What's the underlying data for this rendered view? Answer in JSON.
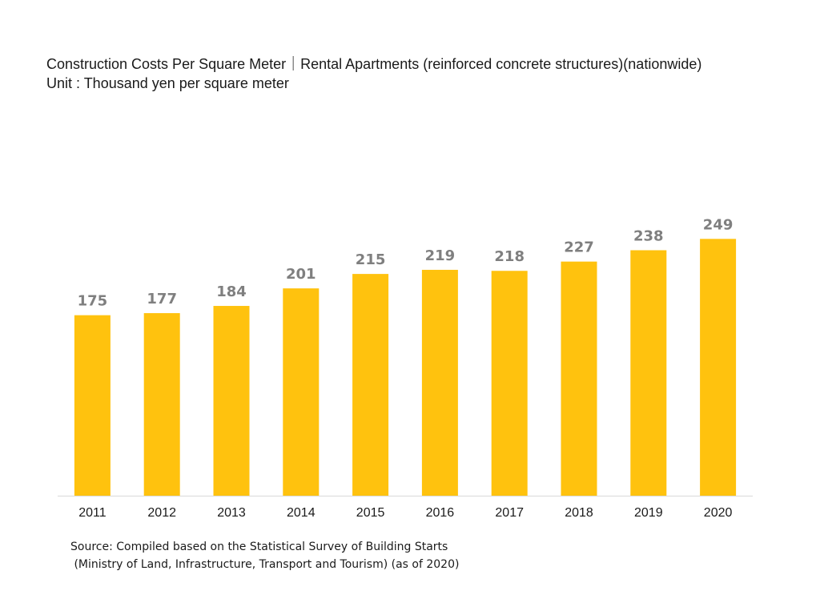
{
  "header": {
    "title": "Construction Costs Per Square Meter｜Rental Apartments (reinforced concrete structures)(nationwide)",
    "unit": "Unit : Thousand yen per square meter"
  },
  "source": {
    "line1": "Source: Compiled based on the Statistical Survey of Building Starts",
    "line2": " (Ministry of Land, Infrastructure, Transport and Tourism) (as of 2020)"
  },
  "chart_data": {
    "type": "bar",
    "title": "Construction Costs Per Square Meter｜Rental Apartments (reinforced concrete structures)(nationwide)",
    "subtitle": "Unit : Thousand yen per square meter",
    "xlabel": "",
    "ylabel": "",
    "categories": [
      "2011",
      "2012",
      "2013",
      "2014",
      "2015",
      "2016",
      "2017",
      "2018",
      "2019",
      "2020"
    ],
    "values": [
      175,
      177,
      184,
      201,
      215,
      219,
      218,
      227,
      238,
      249
    ],
    "ylim": [
      0,
      330
    ],
    "grid": false,
    "legend": "none",
    "colors": {
      "bar": "#FFC20E",
      "value_label": "#7f7f7f",
      "tick_label": "#1a1a1a",
      "axis": "#d9d9d9"
    }
  }
}
